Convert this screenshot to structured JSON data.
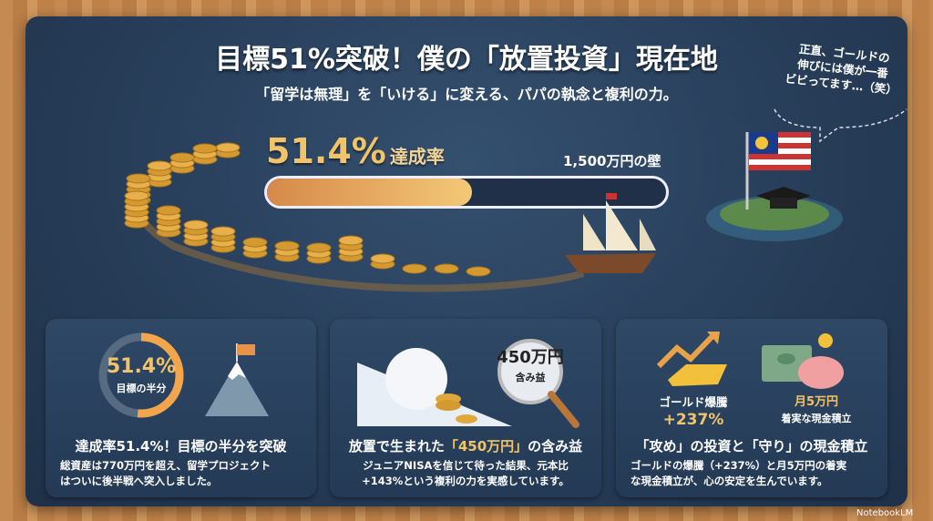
{
  "header": {
    "title": "目標51%突破！僕の「放置投資」現在地",
    "subtitle": "「留学は無理」を「いける」に変える、パパの執念と複利の力。"
  },
  "speech_bubble": {
    "lines": [
      "正直、ゴールドの",
      "伸びには僕が一番",
      "ビビってます…（笑）"
    ]
  },
  "progress": {
    "percent_label": "51.4%",
    "label": "達成率",
    "value": 51.4,
    "goal_label": "1,500万円の壁"
  },
  "cards": [
    {
      "badge_value": "51.4%",
      "badge_label": "目標の半分",
      "ring_percent": 51.4,
      "title": "達成率51.4%！目標の半分を突破",
      "body": [
        "総資産は770万円を超え、留学プロジェクト",
        "はついに後半戦へ突入しました。"
      ]
    },
    {
      "badge_value": "450万円",
      "badge_label": "含み益",
      "title_pre": "放置で生まれた",
      "title_hl": "「450万円」",
      "title_post": "の含み益",
      "body": [
        "ジュニアNISAを信じて待った結果、元本比",
        "+143%という複利の力を実感しています。"
      ]
    },
    {
      "gold_label": "ゴールド爆騰",
      "gold_value": "+237%",
      "cash_value": "月5万円",
      "cash_label": "着実な現金積立",
      "title": "「攻め」の投資と「守り」の現金積立",
      "body": [
        "ゴールドの爆騰（+237%）と月5万円の着実",
        "な現金積立が、心の安定を生んでいます。"
      ]
    }
  ],
  "footer": {
    "brand": "NotebookLM"
  },
  "colors": {
    "accent": "#f2c46a",
    "panel": "#263c57"
  }
}
